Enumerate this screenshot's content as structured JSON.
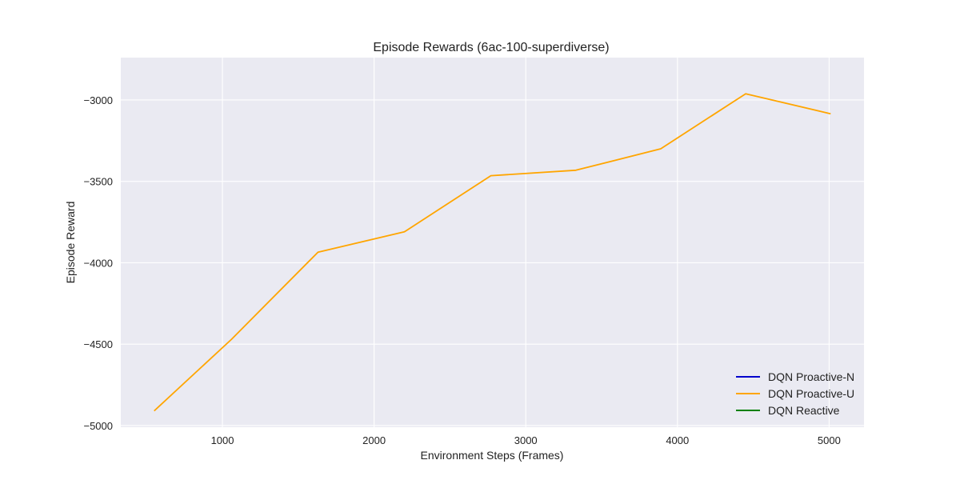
{
  "chart_data": {
    "type": "line",
    "title": "Episode Rewards (6ac-100-superdiverse)",
    "xlabel": "Environment Steps (Frames)",
    "ylabel": "Episode Reward",
    "xlim": [
      330,
      5230
    ],
    "ylim": [
      -5010,
      -2740
    ],
    "xticks": [
      1000,
      2000,
      3000,
      4000,
      5000
    ],
    "yticks": [
      -5000,
      -4500,
      -4000,
      -3500,
      -3000
    ],
    "xtick_labels": [
      "1000",
      "2000",
      "3000",
      "4000",
      "5000"
    ],
    "ytick_labels": [
      "−5000",
      "−4500",
      "−4000",
      "−3500",
      "−3000"
    ],
    "grid": true,
    "legend_position": "lower-right",
    "series": [
      {
        "name": "DQN Proactive-N",
        "color": "#0000cc",
        "x": [],
        "y": []
      },
      {
        "name": "DQN Proactive-U",
        "color": "#ffa500",
        "x": [
          550,
          1060,
          1630,
          2200,
          2770,
          3330,
          3890,
          4450,
          5010
        ],
        "y": [
          -4910,
          -4470,
          -3935,
          -3810,
          -3465,
          -3432,
          -3300,
          -2962,
          -3085
        ]
      },
      {
        "name": "DQN Reactive",
        "color": "#008000",
        "x": [],
        "y": []
      }
    ]
  }
}
